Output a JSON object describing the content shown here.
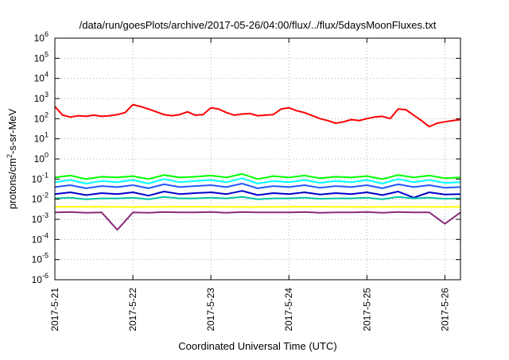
{
  "chart_data": {
    "type": "line",
    "title": "/data/run/goesPlots/archive/2017-05-26/04:00/flux/../flux/5daysMoonFluxes.txt",
    "xlabel": "Coordinated Universal Time (UTC)",
    "ylabel": {
      "base": "protons/cm",
      "sup": "2",
      "rest": "-s-sr-MeV"
    },
    "y_scale": "log",
    "ylim": [
      1e-06,
      1000000.0
    ],
    "x_domain_days_span": [
      0,
      5.2
    ],
    "x_ticks": [
      "2017-5-21",
      "2017-5-22",
      "2017-5-23",
      "2017-5-24",
      "2017-5-25",
      "2017-5-26"
    ],
    "y_ticks": [
      {
        "base": "10",
        "exp": "-6",
        "value": 1e-06
      },
      {
        "base": "10",
        "exp": "-5",
        "value": 1e-05
      },
      {
        "base": "10",
        "exp": "-4",
        "value": 0.0001
      },
      {
        "base": "10",
        "exp": "-3",
        "value": 0.001
      },
      {
        "base": "10",
        "exp": "-2",
        "value": 0.01
      },
      {
        "base": "10",
        "exp": "-1",
        "value": 0.1
      },
      {
        "base": "10",
        "exp": "0",
        "value": 1
      },
      {
        "base": "10",
        "exp": "1",
        "value": 10
      },
      {
        "base": "10",
        "exp": "2",
        "value": 100
      },
      {
        "base": "10",
        "exp": "3",
        "value": 1000
      },
      {
        "base": "10",
        "exp": "4",
        "value": 10000
      },
      {
        "base": "10",
        "exp": "5",
        "value": 100000
      },
      {
        "base": "10",
        "exp": "6",
        "value": 1000000
      }
    ],
    "grid": true,
    "series": [
      {
        "color": "#ff0000",
        "x": [
          0,
          0.1,
          0.2,
          0.3,
          0.4,
          0.5,
          0.6,
          0.7,
          0.8,
          0.9,
          1.0,
          1.1,
          1.2,
          1.3,
          1.4,
          1.5,
          1.6,
          1.7,
          1.8,
          1.9,
          2.0,
          2.1,
          2.2,
          2.3,
          2.4,
          2.5,
          2.6,
          2.7,
          2.8,
          2.9,
          3.0,
          3.1,
          3.2,
          3.3,
          3.4,
          3.5,
          3.6,
          3.7,
          3.8,
          3.9,
          4.0,
          4.1,
          4.2,
          4.3,
          4.4,
          4.5,
          4.6,
          4.7,
          4.8,
          4.9,
          5.0,
          5.1,
          5.2
        ],
        "y": [
          400,
          150,
          120,
          140,
          130,
          150,
          130,
          140,
          160,
          200,
          500,
          400,
          300,
          220,
          160,
          140,
          160,
          220,
          150,
          160,
          350,
          300,
          200,
          150,
          170,
          180,
          140,
          150,
          160,
          300,
          350,
          250,
          200,
          140,
          100,
          80,
          60,
          70,
          90,
          80,
          100,
          120,
          130,
          100,
          300,
          280,
          150,
          80,
          40,
          60,
          70,
          80,
          90
        ]
      },
      {
        "color": "#00ff00",
        "x": [
          0,
          0.2,
          0.4,
          0.6,
          0.8,
          1.0,
          1.2,
          1.4,
          1.6,
          1.8,
          2.0,
          2.2,
          2.4,
          2.6,
          2.8,
          3.0,
          3.2,
          3.4,
          3.6,
          3.8,
          4.0,
          4.2,
          4.4,
          4.6,
          4.8,
          5.0,
          5.2
        ],
        "y": [
          0.12,
          0.15,
          0.1,
          0.13,
          0.12,
          0.14,
          0.1,
          0.16,
          0.12,
          0.13,
          0.15,
          0.12,
          0.18,
          0.1,
          0.14,
          0.12,
          0.15,
          0.11,
          0.13,
          0.12,
          0.14,
          0.1,
          0.16,
          0.12,
          0.15,
          0.11,
          0.12
        ]
      },
      {
        "color": "#00ffff",
        "x": [
          0,
          0.2,
          0.4,
          0.6,
          0.8,
          1.0,
          1.2,
          1.4,
          1.6,
          1.8,
          2.0,
          2.2,
          2.4,
          2.6,
          2.8,
          3.0,
          3.2,
          3.4,
          3.6,
          3.8,
          4.0,
          4.2,
          4.4,
          4.6,
          4.8,
          5.0,
          5.2
        ],
        "y": [
          0.07,
          0.09,
          0.06,
          0.08,
          0.07,
          0.09,
          0.06,
          0.1,
          0.07,
          0.08,
          0.09,
          0.07,
          0.11,
          0.06,
          0.08,
          0.07,
          0.09,
          0.065,
          0.08,
          0.07,
          0.09,
          0.06,
          0.1,
          0.07,
          0.09,
          0.065,
          0.07
        ]
      },
      {
        "color": "#1e5aff",
        "x": [
          0,
          0.2,
          0.4,
          0.6,
          0.8,
          1.0,
          1.2,
          1.4,
          1.6,
          1.8,
          2.0,
          2.2,
          2.4,
          2.6,
          2.8,
          3.0,
          3.2,
          3.4,
          3.6,
          3.8,
          4.0,
          4.2,
          4.4,
          4.6,
          4.8,
          5.0,
          5.2
        ],
        "y": [
          0.04,
          0.05,
          0.035,
          0.045,
          0.04,
          0.05,
          0.035,
          0.055,
          0.04,
          0.045,
          0.05,
          0.04,
          0.06,
          0.035,
          0.045,
          0.04,
          0.05,
          0.037,
          0.045,
          0.04,
          0.05,
          0.035,
          0.055,
          0.04,
          0.05,
          0.037,
          0.04
        ]
      },
      {
        "color": "#0000cc",
        "x": [
          0,
          0.2,
          0.4,
          0.6,
          0.8,
          1.0,
          1.2,
          1.4,
          1.6,
          1.8,
          2.0,
          2.2,
          2.4,
          2.6,
          2.8,
          3.0,
          3.2,
          3.4,
          3.6,
          3.8,
          4.0,
          4.2,
          4.4,
          4.6,
          4.8,
          5.0,
          5.2
        ],
        "y": [
          0.018,
          0.022,
          0.016,
          0.02,
          0.018,
          0.022,
          0.015,
          0.024,
          0.018,
          0.02,
          0.022,
          0.018,
          0.026,
          0.016,
          0.02,
          0.018,
          0.022,
          0.017,
          0.02,
          0.018,
          0.022,
          0.016,
          0.024,
          0.012,
          0.022,
          0.017,
          0.018
        ]
      },
      {
        "color": "#00c8a0",
        "x": [
          0,
          0.2,
          0.4,
          0.6,
          0.8,
          1.0,
          1.2,
          1.4,
          1.6,
          1.8,
          2.0,
          2.2,
          2.4,
          2.6,
          2.8,
          3.0,
          3.2,
          3.4,
          3.6,
          3.8,
          4.0,
          4.2,
          4.4,
          4.6,
          4.8,
          5.0,
          5.2
        ],
        "y": [
          0.011,
          0.012,
          0.01,
          0.011,
          0.011,
          0.012,
          0.01,
          0.013,
          0.011,
          0.011,
          0.012,
          0.011,
          0.013,
          0.01,
          0.011,
          0.011,
          0.012,
          0.0105,
          0.011,
          0.011,
          0.012,
          0.01,
          0.013,
          0.011,
          0.012,
          0.0105,
          0.011
        ]
      },
      {
        "color": "#ffff00",
        "x": [
          0,
          0.5,
          1.0,
          1.5,
          2.0,
          2.5,
          3.0,
          3.5,
          4.0,
          4.5,
          5.0,
          5.2
        ],
        "y": [
          0.0042,
          0.0042,
          0.0041,
          0.0042,
          0.0042,
          0.0041,
          0.0042,
          0.0042,
          0.0041,
          0.0042,
          0.0041,
          0.0042
        ]
      },
      {
        "color": "#8b2a7a",
        "x": [
          0,
          0.2,
          0.4,
          0.6,
          0.8,
          1.0,
          1.2,
          1.4,
          1.6,
          1.8,
          2.0,
          2.2,
          2.4,
          2.6,
          2.8,
          3.0,
          3.2,
          3.4,
          3.6,
          3.8,
          4.0,
          4.2,
          4.4,
          4.6,
          4.8,
          5.0,
          5.2
        ],
        "y": [
          0.0022,
          0.0023,
          0.0021,
          0.0022,
          0.0003,
          0.0022,
          0.0021,
          0.0023,
          0.0022,
          0.0022,
          0.0023,
          0.0021,
          0.0023,
          0.0022,
          0.0022,
          0.0022,
          0.0023,
          0.0021,
          0.0022,
          0.0022,
          0.0023,
          0.0021,
          0.0023,
          0.0022,
          0.0022,
          0.0006,
          0.0022
        ]
      }
    ]
  }
}
